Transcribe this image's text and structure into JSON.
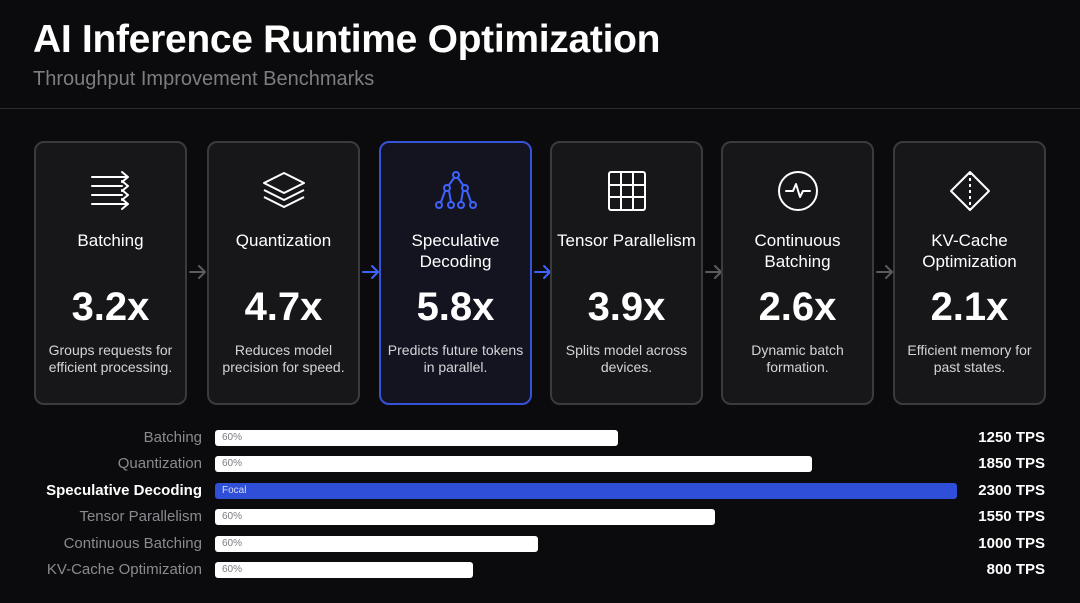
{
  "header": {
    "title": "AI Inference Runtime Optimization",
    "subtitle": "Throughput Improvement Benchmarks"
  },
  "colors": {
    "background": "#0b0b0d",
    "card": "#17171a",
    "card_border": "#3a3a40",
    "focal": "#3553d6",
    "bar": "#ffffff"
  },
  "cards": [
    {
      "name": "Batching",
      "multiplier": "3.2x",
      "description": "Groups requests for efficient processing.",
      "icon": "batching-arrows-icon",
      "focal": false
    },
    {
      "name": "Quantization",
      "multiplier": "4.7x",
      "description": "Reduces model precision for speed.",
      "icon": "layers-icon",
      "focal": false
    },
    {
      "name": "Speculative Decoding",
      "multiplier": "5.8x",
      "description": "Predicts future tokens in parallel.",
      "icon": "tree-icon",
      "focal": true
    },
    {
      "name": "Tensor Parallelism",
      "multiplier": "3.9x",
      "description": "Splits model across devices.",
      "icon": "grid-icon",
      "focal": false
    },
    {
      "name": "Continuous Batching",
      "multiplier": "2.6x",
      "description": "Dynamic batch formation.",
      "icon": "pulse-circle-icon",
      "focal": false
    },
    {
      "name": "KV-Cache Optimization",
      "multiplier": "2.1x",
      "description": "Efficient memory for past states.",
      "icon": "diamond-icon",
      "focal": false
    }
  ],
  "chart_data": {
    "type": "bar",
    "orientation": "horizontal",
    "categories": [
      "Batching",
      "Quantization",
      "Speculative Decoding",
      "Tensor Parallelism",
      "Continuous Batching",
      "KV-Cache Optimization"
    ],
    "values": [
      1250,
      1850,
      2300,
      1550,
      1000,
      800
    ],
    "value_labels": [
      "1250 TPS",
      "1850 TPS",
      "2300 TPS",
      "1550 TPS",
      "1000 TPS",
      "800 TPS"
    ],
    "bar_tags": [
      "60%",
      "60%",
      "Focal",
      "60%",
      "60%",
      "60%"
    ],
    "focal_index": 2,
    "xlim": [
      0,
      2300
    ]
  }
}
